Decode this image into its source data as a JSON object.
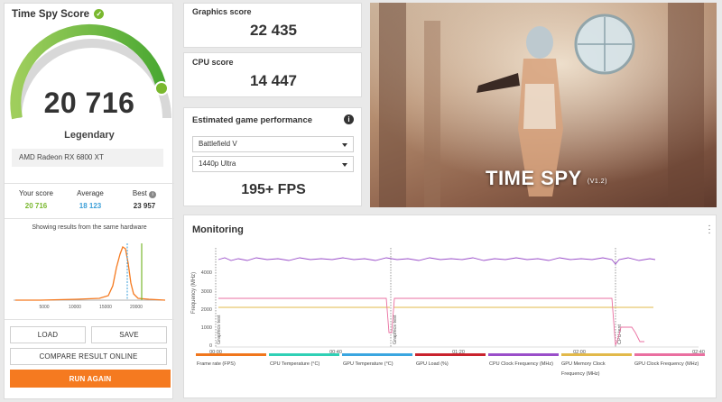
{
  "score_panel": {
    "title": "Time Spy Score",
    "score": "20 716",
    "rating": "Legendary",
    "gpu": "AMD Radeon RX 6800 XT",
    "gauge_fraction": 0.95,
    "stats": {
      "your_label": "Your score",
      "your_value": "20 716",
      "avg_label": "Average",
      "avg_value": "18 123",
      "best_label": "Best",
      "best_value": "23 957"
    },
    "dist_caption": "Showing results from the same hardware",
    "dist_ticks": [
      "5000",
      "10000",
      "15000",
      "20000"
    ]
  },
  "graphics": {
    "label": "Graphics score",
    "value": "22 435"
  },
  "cpu": {
    "label": "CPU score",
    "value": "14 447"
  },
  "estimate": {
    "title": "Estimated game performance",
    "game": "Battlefield V",
    "preset": "1440p Ultra",
    "fps": "195+ FPS"
  },
  "hero": {
    "title": "TIME SPY",
    "version": "(V1.2)"
  },
  "buttons": {
    "load": "LOAD",
    "save": "SAVE",
    "compare": "COMPARE RESULT ONLINE",
    "run_again": "RUN AGAIN"
  },
  "monitoring": {
    "title": "Monitoring",
    "y_label": "Frequency (MHz)",
    "y_ticks": [
      "4000",
      "3000",
      "2000",
      "1000",
      "0"
    ],
    "x_ticks": [
      "00:00",
      "00:40",
      "01:20",
      "02:00",
      "02:40"
    ],
    "markers": [
      "Graphics test",
      "Graphics test",
      "CPU test"
    ],
    "legend": [
      {
        "label": "Frame rate (FPS)",
        "color": "#f0761c"
      },
      {
        "label": "CPU Temperature (°C)",
        "color": "#2fd0b5"
      },
      {
        "label": "GPU Temperature (°C)",
        "color": "#3aa6e0"
      },
      {
        "label": "GPU Load (%)",
        "color": "#c9232d"
      },
      {
        "label": "CPU Clock Frequency (MHz)",
        "color": "#9a4ec9"
      },
      {
        "label": "GPU Memory Clock Frequency (MHz)",
        "color": "#e2b94a"
      },
      {
        "label": "GPU Clock Frequency (MHz)",
        "color": "#ea6fa0"
      }
    ]
  },
  "colors": {
    "accent_green": "#7ab82f",
    "orange": "#f57a20",
    "blue": "#3b9fd8"
  }
}
